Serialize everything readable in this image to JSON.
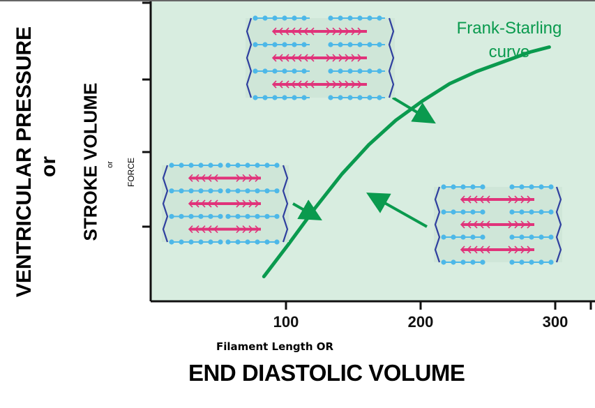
{
  "chart_data": {
    "type": "line",
    "title": "",
    "ylabel_parts": [
      "VENTRICULAR PRESSURE",
      "or",
      "STROKE VOLUME",
      "or",
      "FORCE"
    ],
    "xlabel_parts": [
      "Filament Length  OR",
      "END DIASTOLIC VOLUME"
    ],
    "x_ticks": [
      100,
      200,
      300
    ],
    "xlim": [
      0,
      330
    ],
    "y_ticks_labeled": false,
    "grid": false,
    "series": [
      {
        "name": "Frank-Starling curve",
        "color": "#0a9a4e",
        "x": [
          82,
          100,
          120,
          140,
          160,
          180,
          200,
          220,
          240,
          260,
          280,
          294
        ],
        "y": [
          0.05,
          0.18,
          0.33,
          0.47,
          0.59,
          0.69,
          0.77,
          0.84,
          0.89,
          0.93,
          0.97,
          0.99
        ]
      }
    ],
    "annotations": [
      {
        "text": "Frank-Starling curve",
        "lines": [
          "Frank-Starling",
          "curve"
        ]
      }
    ],
    "insets": [
      {
        "name": "sarcomere-stretched",
        "description_icon": "sarcomere-diagram"
      },
      {
        "name": "sarcomere-optimal",
        "description_icon": "sarcomere-diagram"
      },
      {
        "name": "sarcomere-short",
        "description_icon": "sarcomere-diagram"
      }
    ],
    "colors": {
      "background": "#d8ede0",
      "curve": "#0a9a4e",
      "thick_filament": "#e0337a",
      "thin_filament": "#4db8e8",
      "z_line": "#2f3f9f"
    }
  }
}
